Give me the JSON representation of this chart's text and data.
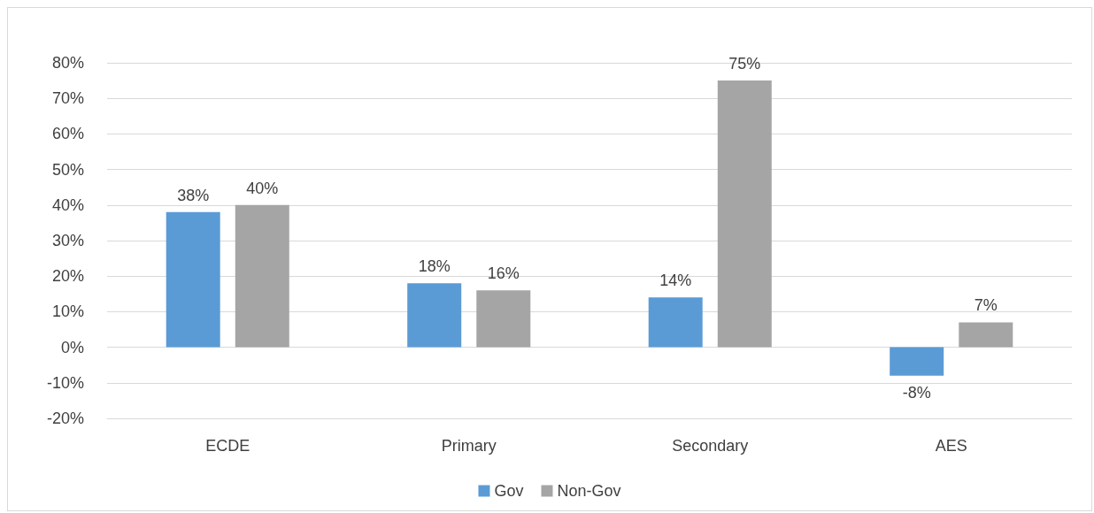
{
  "chart_data": {
    "type": "bar",
    "categories": [
      "ECDE",
      "Primary",
      "Secondary",
      "AES"
    ],
    "series": [
      {
        "name": "Gov",
        "color": "#5b9bd5",
        "values": [
          38,
          18,
          14,
          -8
        ],
        "value_labels": [
          "38%",
          "18%",
          "14%",
          "-8%"
        ]
      },
      {
        "name": "Non-Gov",
        "color": "#a5a5a5",
        "values": [
          40,
          16,
          75,
          7
        ],
        "value_labels": [
          "40%",
          "16%",
          "75%",
          "7%"
        ]
      }
    ],
    "ylim": [
      -20,
      80
    ],
    "yticks": [
      {
        "value": -20,
        "label": "-20%"
      },
      {
        "value": -10,
        "label": "-10%"
      },
      {
        "value": 0,
        "label": "0%"
      },
      {
        "value": 10,
        "label": "10%"
      },
      {
        "value": 20,
        "label": "20%"
      },
      {
        "value": 30,
        "label": "30%"
      },
      {
        "value": 40,
        "label": "40%"
      },
      {
        "value": 50,
        "label": "50%"
      },
      {
        "value": 60,
        "label": "60%"
      },
      {
        "value": 70,
        "label": "70%"
      },
      {
        "value": 80,
        "label": "80%"
      }
    ],
    "grid": "y",
    "legend": "bottom"
  }
}
